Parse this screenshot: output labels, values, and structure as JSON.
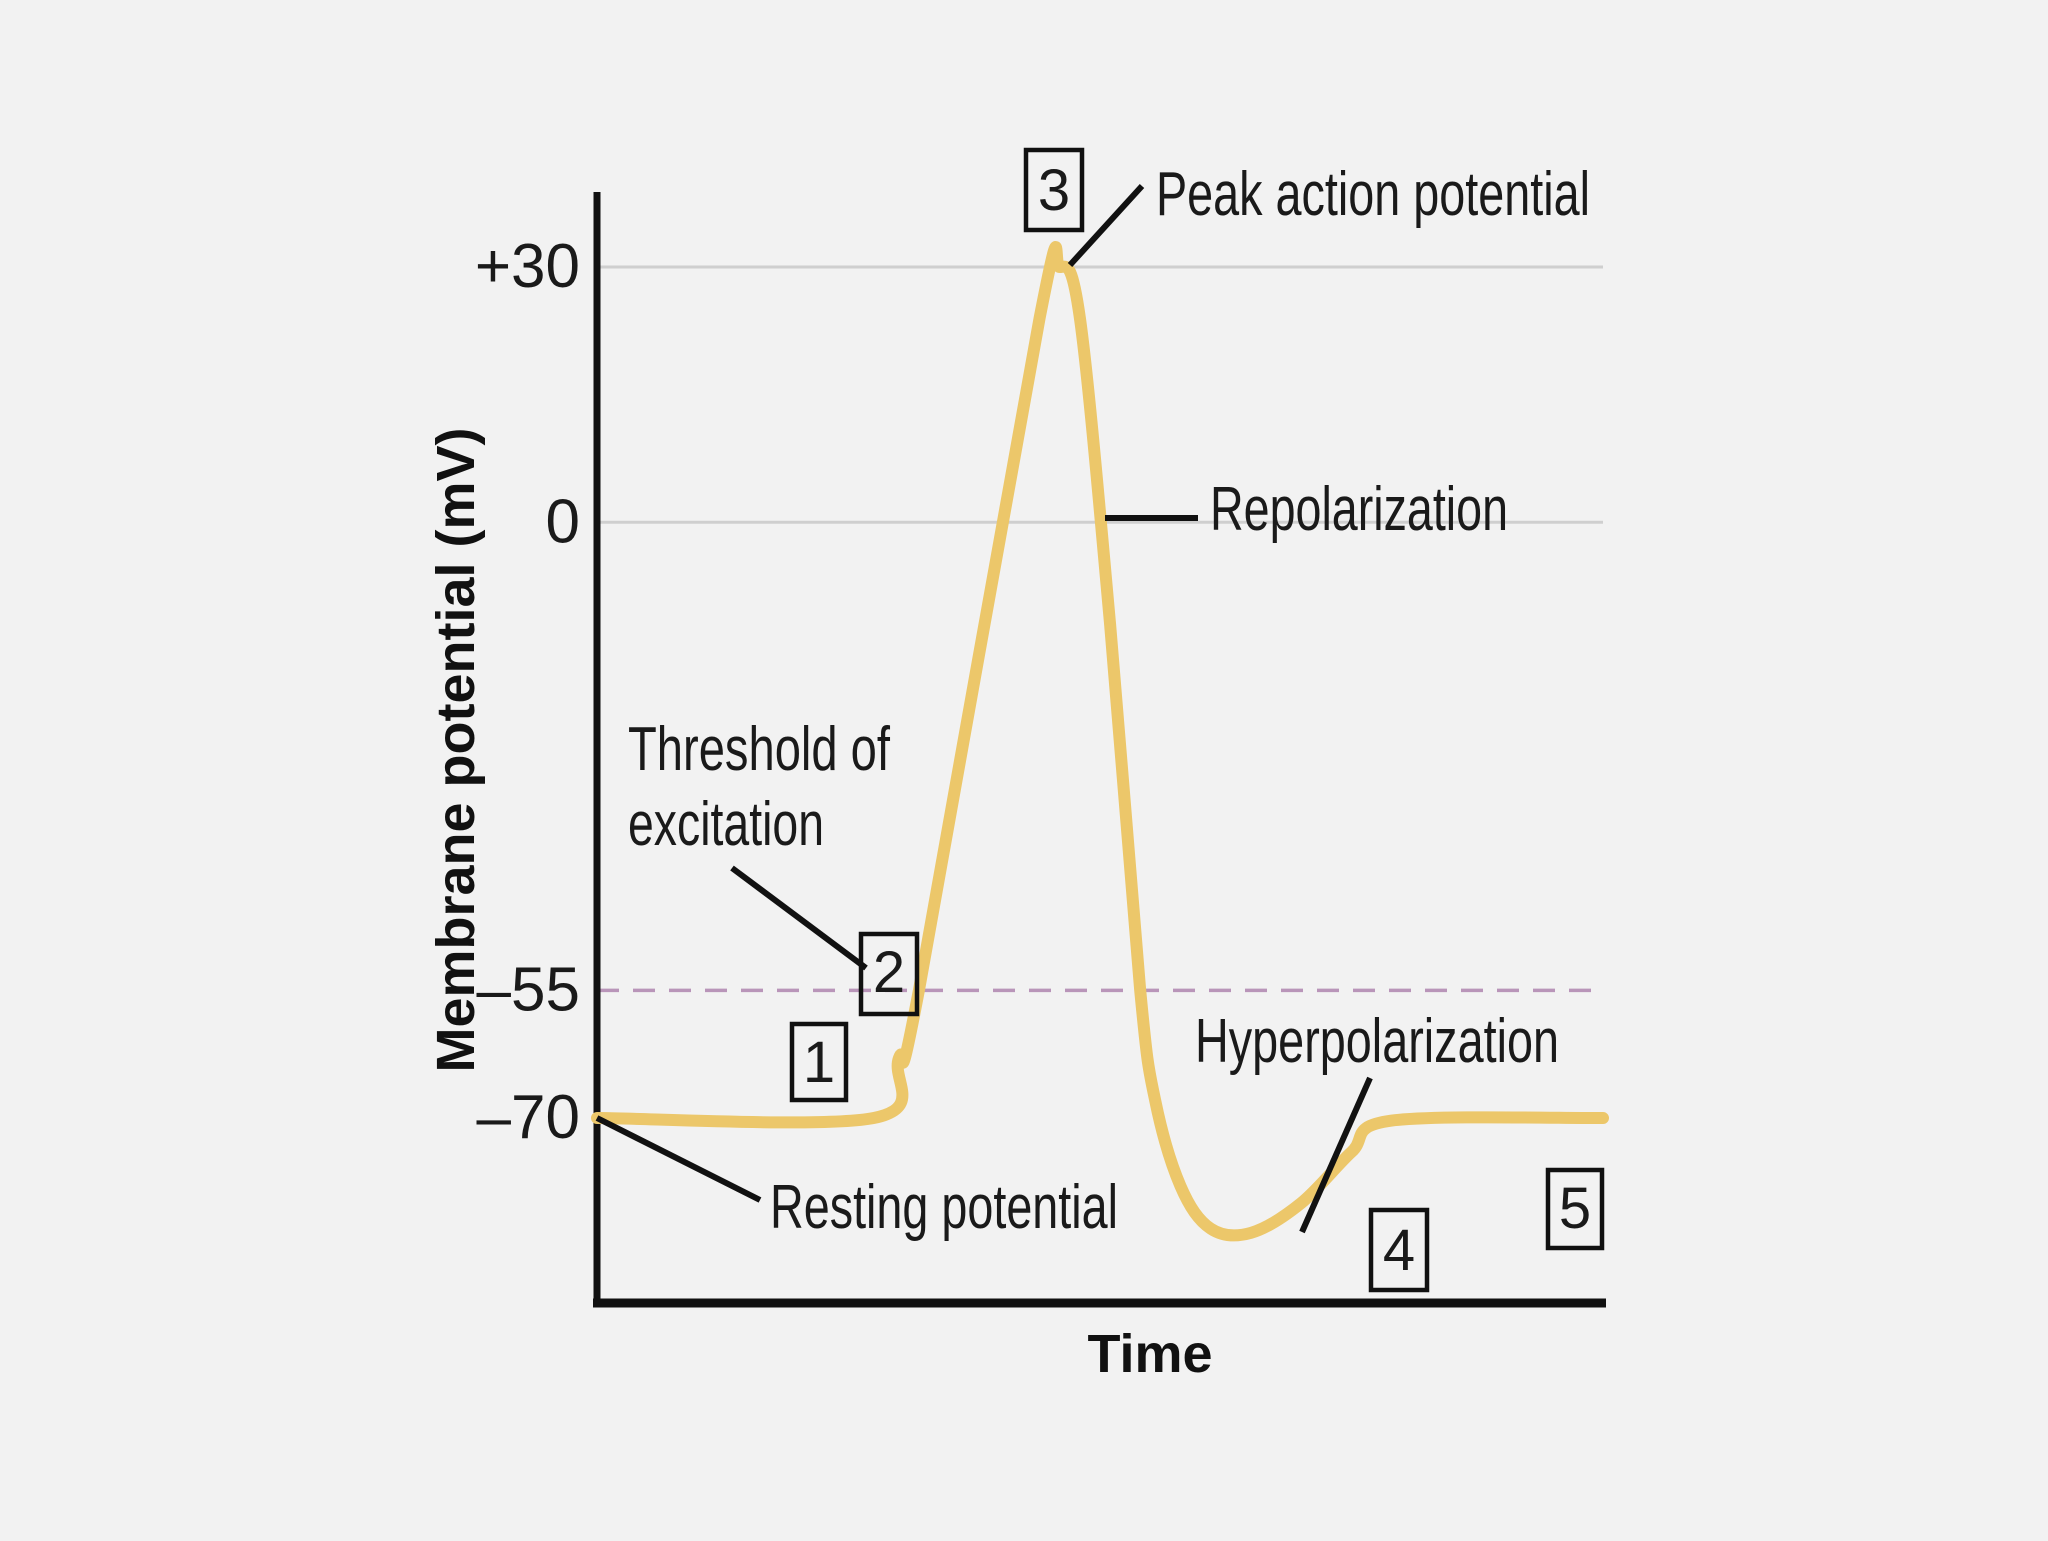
{
  "chart_data": {
    "type": "line",
    "title": "",
    "xlabel": "Time",
    "ylabel": "Membrane potential (mV)",
    "ylim": [
      -90,
      38
    ],
    "yticks": [
      {
        "value": 30,
        "label": "+30"
      },
      {
        "value": 0,
        "label": "0"
      },
      {
        "value": -55,
        "label": "–55"
      },
      {
        "value": -70,
        "label": "–70"
      }
    ],
    "gridlines": [
      30,
      0
    ],
    "threshold": {
      "value": -55
    },
    "series": [
      {
        "name": "Action potential",
        "color": "#ecc76a",
        "points": [
          [
            0,
            -70
          ],
          [
            27.5,
            -70
          ],
          [
            30,
            -63
          ],
          [
            32,
            -55
          ],
          [
            44,
            24
          ],
          [
            46,
            30
          ],
          [
            48,
            24
          ],
          [
            51,
            -12
          ],
          [
            54,
            -55
          ],
          [
            55.5,
            -68
          ],
          [
            58,
            -78
          ],
          [
            61,
            -83
          ],
          [
            65,
            -83.5
          ],
          [
            70,
            -80
          ],
          [
            75,
            -74
          ],
          [
            79,
            -70.3
          ],
          [
            100,
            -70
          ]
        ]
      }
    ],
    "annotations": [
      {
        "id": "resting",
        "text": "Resting potential"
      },
      {
        "id": "threshold",
        "lines": [
          "Threshold of",
          "excitation"
        ]
      },
      {
        "id": "peak",
        "text": "Peak action potential"
      },
      {
        "id": "repolarization",
        "text": "Repolarization"
      },
      {
        "id": "hyperpolarization",
        "text": "Hyperpolarization"
      }
    ],
    "boxes": [
      {
        "id": "b1",
        "label": "1"
      },
      {
        "id": "b2",
        "label": "2"
      },
      {
        "id": "b3",
        "label": "3"
      },
      {
        "id": "b4",
        "label": "4"
      },
      {
        "id": "b5",
        "label": "5"
      }
    ],
    "colors": {
      "curve": "#ecc76a",
      "threshold": "#b995b9",
      "grid": "#cfcfcf",
      "axis": "#111111",
      "background": "#f2f2f2"
    }
  }
}
